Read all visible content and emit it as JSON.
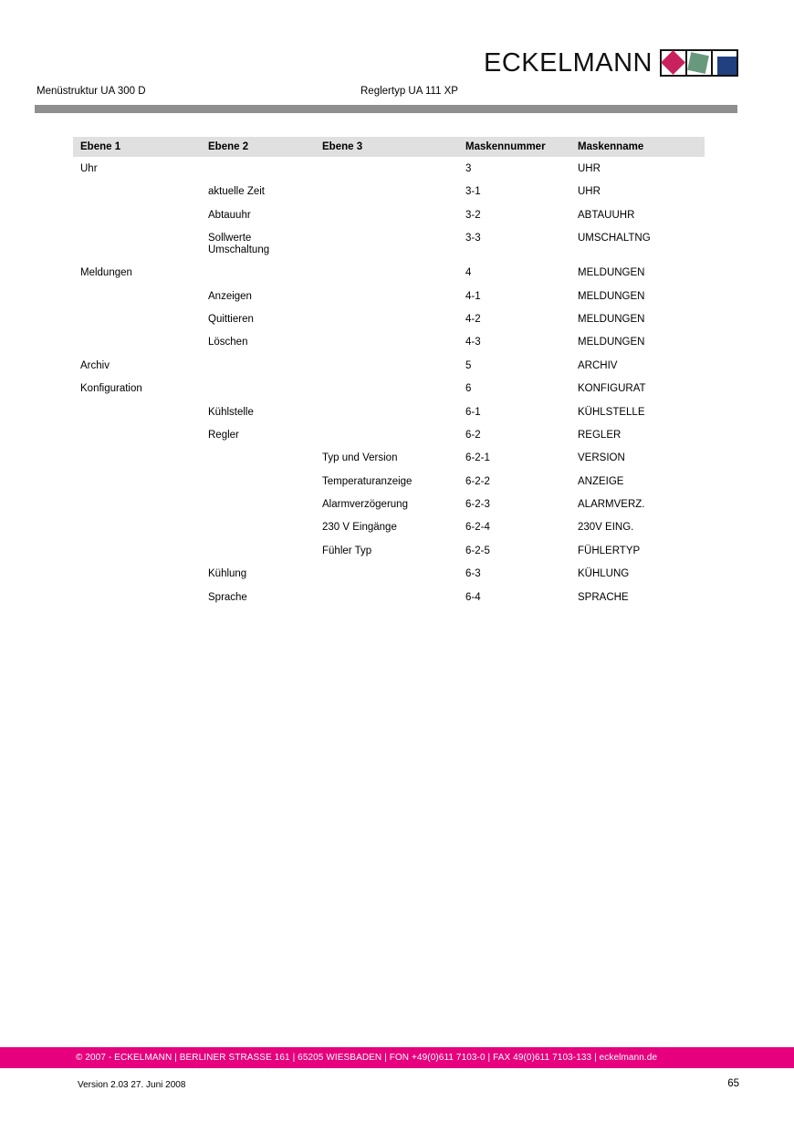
{
  "logo": {
    "wordmark": "ECKELMANN",
    "squares": [
      {
        "name": "magenta-diamond",
        "color": "#c9215e"
      },
      {
        "name": "green-square",
        "color": "#68997e"
      },
      {
        "name": "blue-square",
        "color": "#20407f"
      }
    ]
  },
  "header": {
    "left_title": "Menüstruktur UA 300 D",
    "center_title": "Reglertyp UA 111 XP",
    "rule_color": "#8f8f8f"
  },
  "table": {
    "header_bg": "#e0e0e0",
    "columns": [
      "Ebene 1",
      "Ebene 2",
      "Ebene 3",
      "Maskennummer",
      "Maskenname"
    ],
    "rows": [
      {
        "ebene1": "Uhr",
        "ebene2": "",
        "ebene3": "",
        "maskennummer": "3",
        "maskenname": "UHR"
      },
      {
        "ebene1": "",
        "ebene2": "aktuelle Zeit",
        "ebene3": "",
        "maskennummer": "3-1",
        "maskenname": "UHR"
      },
      {
        "ebene1": "",
        "ebene2": "Abtauuhr",
        "ebene3": "",
        "maskennummer": "3-2",
        "maskenname": "ABTAUUHR"
      },
      {
        "ebene1": "",
        "ebene2": "Sollwerte\nUmschaltung",
        "ebene3": "",
        "maskennummer": "3-3",
        "maskenname": "UMSCHALTNG"
      },
      {
        "ebene1": "Meldungen",
        "ebene2": "",
        "ebene3": "",
        "maskennummer": "4",
        "maskenname": "MELDUNGEN"
      },
      {
        "ebene1": "",
        "ebene2": "Anzeigen",
        "ebene3": "",
        "maskennummer": "4-1",
        "maskenname": "MELDUNGEN"
      },
      {
        "ebene1": "",
        "ebene2": "Quittieren",
        "ebene3": "",
        "maskennummer": "4-2",
        "maskenname": "MELDUNGEN"
      },
      {
        "ebene1": "",
        "ebene2": "Löschen",
        "ebene3": "",
        "maskennummer": "4-3",
        "maskenname": "MELDUNGEN"
      },
      {
        "ebene1": "Archiv",
        "ebene2": "",
        "ebene3": "",
        "maskennummer": "5",
        "maskenname": "ARCHIV"
      },
      {
        "ebene1": "Konfiguration",
        "ebene2": "",
        "ebene3": "",
        "maskennummer": "6",
        "maskenname": "KONFIGURAT"
      },
      {
        "ebene1": "",
        "ebene2": "Kühlstelle",
        "ebene3": "",
        "maskennummer": "6-1",
        "maskenname": "KÜHLSTELLE"
      },
      {
        "ebene1": "",
        "ebene2": "Regler",
        "ebene3": "",
        "maskennummer": "6-2",
        "maskenname": "REGLER"
      },
      {
        "ebene1": "",
        "ebene2": "",
        "ebene3": "Typ und Version",
        "maskennummer": "6-2-1",
        "maskenname": "VERSION"
      },
      {
        "ebene1": "",
        "ebene2": "",
        "ebene3": "Temperaturanzeige",
        "maskennummer": "6-2-2",
        "maskenname": "ANZEIGE"
      },
      {
        "ebene1": "",
        "ebene2": "",
        "ebene3": "Alarmverzögerung",
        "maskennummer": "6-2-3",
        "maskenname": "ALARMVERZ."
      },
      {
        "ebene1": "",
        "ebene2": "",
        "ebene3": "230 V Eingänge",
        "maskennummer": "6-2-4",
        "maskenname": "230V EING."
      },
      {
        "ebene1": "",
        "ebene2": "",
        "ebene3": "Fühler Typ",
        "maskennummer": "6-2-5",
        "maskenname": "FÜHLERTYP"
      },
      {
        "ebene1": "",
        "ebene2": "Kühlung",
        "ebene3": "",
        "maskennummer": "6-3",
        "maskenname": "KÜHLUNG"
      },
      {
        "ebene1": "",
        "ebene2": "Sprache",
        "ebene3": "",
        "maskennummer": "6-4",
        "maskenname": "SPRACHE"
      }
    ]
  },
  "footer": {
    "bar_text": "© 2007 - ECKELMANN | BERLINER STRASSE 161 | 65205 WIESBADEN | FON +49(0)611 7103-0 | FAX 49(0)611 7103-133 | eckelmann.de",
    "bar_color": "#e6007e",
    "version_line": "Version 2.03   27. Juni 2008",
    "page_number": "65"
  }
}
